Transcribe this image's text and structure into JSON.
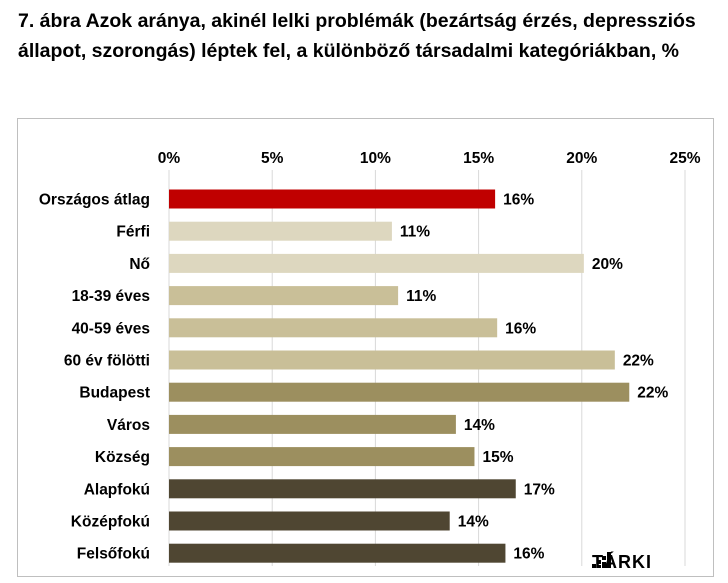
{
  "page": {
    "title": "7. ábra Azok aránya, akinél lelki problémák (bezártság érzés, depressziós állapot, szorongás) léptek fel, a különböző társadalmi kategóriákban, %",
    "logo": "TÁRKI"
  },
  "chart_data": {
    "type": "bar",
    "orientation": "horizontal",
    "title": "",
    "xlim": [
      0,
      25
    ],
    "ticks": [
      0,
      5,
      10,
      15,
      20,
      25
    ],
    "tick_labels": [
      "0%",
      "5%",
      "10%",
      "15%",
      "20%",
      "25%"
    ],
    "grid": true,
    "categories": [
      "Országos átlag",
      "Férfi",
      "Nő",
      "18-39 éves",
      "40-59 éves",
      "60 év fölötti",
      "Budapest",
      "Város",
      "Község",
      "Alapfokú",
      "Középfokú",
      "Felsőfokú"
    ],
    "values": [
      15.8,
      10.8,
      20.1,
      11.1,
      15.9,
      21.6,
      22.3,
      13.9,
      14.8,
      16.8,
      13.6,
      16.3
    ],
    "value_labels": [
      "16%",
      "11%",
      "20%",
      "11%",
      "16%",
      "22%",
      "22%",
      "14%",
      "15%",
      "17%",
      "14%",
      "16%"
    ],
    "colors": [
      "#c00000",
      "#ddd7bf",
      "#ddd7bf",
      "#c9bf98",
      "#c9bf98",
      "#c9bf98",
      "#9c8f5f",
      "#9c8f5f",
      "#9c8f5f",
      "#4f4632",
      "#4f4632",
      "#4f4632"
    ]
  }
}
